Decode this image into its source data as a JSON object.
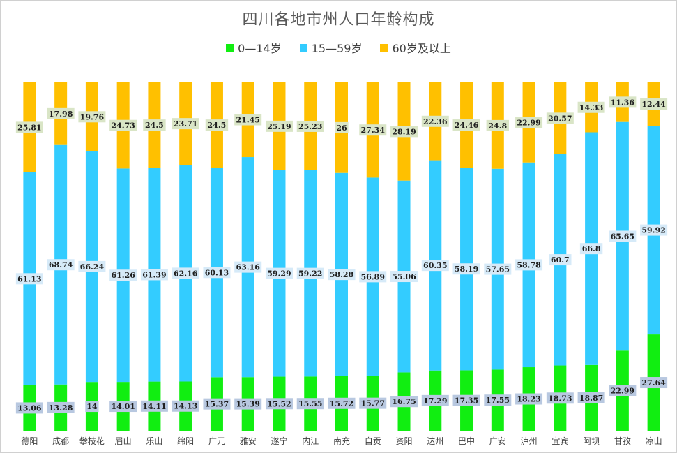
{
  "chart_data": {
    "type": "bar",
    "stacked": true,
    "title": "四川各地市州人口年龄构成",
    "legend_position": "top",
    "categories": [
      "德阳",
      "成都",
      "攀枝花",
      "眉山",
      "乐山",
      "绵阳",
      "广元",
      "雅安",
      "遂宁",
      "内江",
      "南充",
      "自贡",
      "资阳",
      "达州",
      "巴中",
      "广安",
      "泸州",
      "宜宾",
      "阿坝",
      "甘孜",
      "凉山"
    ],
    "series": [
      {
        "name": "0—14岁",
        "color": "#11ee11",
        "label_bg": "#b8c8e0",
        "values": [
          13.06,
          13.28,
          14,
          14.01,
          14.11,
          14.13,
          15.37,
          15.39,
          15.52,
          15.55,
          15.72,
          15.77,
          16.75,
          17.29,
          17.35,
          17.55,
          18.23,
          18.73,
          18.87,
          22.99,
          27.64
        ]
      },
      {
        "name": "15—59岁",
        "color": "#33ccff",
        "label_bg": "#d6eaf8",
        "values": [
          61.13,
          68.74,
          66.24,
          61.26,
          61.39,
          62.16,
          60.13,
          63.16,
          59.29,
          59.22,
          58.28,
          56.89,
          55.06,
          60.35,
          58.19,
          57.65,
          58.78,
          60.7,
          66.8,
          65.65,
          59.92
        ]
      },
      {
        "name": "60岁及以上",
        "color": "#ffc000",
        "label_bg": "#d9e5c6",
        "values": [
          25.81,
          17.98,
          19.76,
          24.73,
          24.5,
          23.71,
          24.5,
          21.45,
          25.19,
          25.23,
          26,
          27.34,
          28.19,
          22.36,
          24.46,
          24.8,
          22.99,
          20.57,
          14.33,
          11.36,
          12.44
        ]
      }
    ],
    "ylim": [
      0,
      100
    ],
    "grid": false,
    "xlabel": "",
    "ylabel": ""
  }
}
